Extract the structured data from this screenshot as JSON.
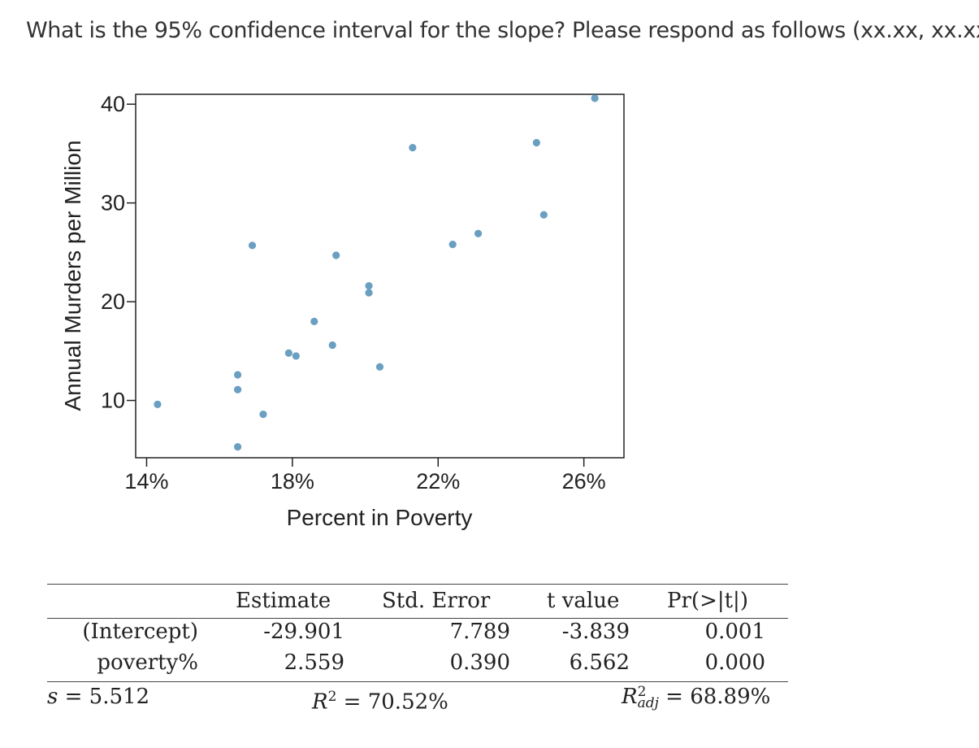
{
  "question": "What is the 95% confidence interval for the slope?  Please respond as follows (xx.xx, xx.xx)",
  "chart_data": {
    "type": "scatter",
    "title": "",
    "xlabel": "Percent in Poverty",
    "ylabel": "Annual Murders per Million",
    "xlim": [
      13.7,
      27.1
    ],
    "ylim": [
      4.2,
      41.0
    ],
    "xticks": [
      14,
      18,
      22,
      26
    ],
    "xtick_labels": [
      "14%",
      "18%",
      "22%",
      "26%"
    ],
    "yticks": [
      10,
      20,
      30,
      40
    ],
    "ytick_labels": [
      "10",
      "20",
      "30",
      "40"
    ],
    "point_color": "#6a9fc2",
    "points": [
      {
        "x": 14.3,
        "y": 9.6
      },
      {
        "x": 16.5,
        "y": 5.3
      },
      {
        "x": 16.5,
        "y": 11.1
      },
      {
        "x": 16.5,
        "y": 12.6
      },
      {
        "x": 16.9,
        "y": 25.7
      },
      {
        "x": 17.2,
        "y": 8.6
      },
      {
        "x": 17.9,
        "y": 14.8
      },
      {
        "x": 18.1,
        "y": 14.5
      },
      {
        "x": 18.6,
        "y": 18.0
      },
      {
        "x": 19.1,
        "y": 15.6
      },
      {
        "x": 19.2,
        "y": 24.7
      },
      {
        "x": 20.1,
        "y": 21.6
      },
      {
        "x": 20.1,
        "y": 20.9
      },
      {
        "x": 20.4,
        "y": 13.4
      },
      {
        "x": 21.3,
        "y": 35.6
      },
      {
        "x": 22.4,
        "y": 25.8
      },
      {
        "x": 23.1,
        "y": 26.9
      },
      {
        "x": 24.7,
        "y": 36.1
      },
      {
        "x": 24.9,
        "y": 28.8
      },
      {
        "x": 26.3,
        "y": 40.6
      }
    ]
  },
  "table": {
    "headers": [
      "Estimate",
      "Std. Error",
      "t value",
      "Pr(>|t|)"
    ],
    "rows": [
      {
        "label": "(Intercept)",
        "estimate": "-29.901",
        "std_error": "7.789",
        "t_value": "-3.839",
        "p_value": "0.001"
      },
      {
        "label": "poverty%",
        "estimate": "2.559",
        "std_error": "0.390",
        "t_value": "6.562",
        "p_value": "0.000"
      }
    ],
    "footer": {
      "s_symbol": "s",
      "s_value": "= 5.512",
      "r2_symbol": "R",
      "r2_sup": "2",
      "r2_value": "= 70.52%",
      "r2adj_symbol": "R",
      "r2adj_sup": "2",
      "r2adj_sub": "adj",
      "r2adj_value": "= 68.89%"
    }
  }
}
